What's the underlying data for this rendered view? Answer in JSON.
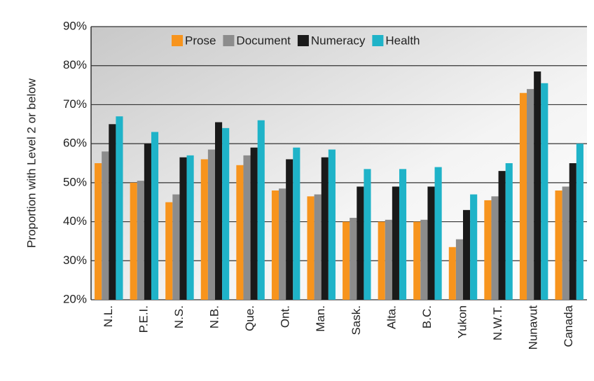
{
  "chart_data": {
    "type": "bar",
    "y_label": "Proportion with Level 2 or below",
    "categories": [
      "N.L.",
      "P.E.I.",
      "N.S.",
      "N.B.",
      "Que.",
      "Ont.",
      "Man.",
      "Sask.",
      "Alta.",
      "B.C.",
      "Yukon",
      "N.W.T.",
      "Nunavut",
      "Canada"
    ],
    "series": [
      {
        "name": "Prose",
        "color": "#f7941d",
        "values": [
          55,
          50,
          45,
          56,
          54.5,
          48,
          46.5,
          40,
          40,
          40,
          33.5,
          45.5,
          73,
          48
        ]
      },
      {
        "name": "Document",
        "color": "#8c8c8c",
        "values": [
          58,
          50.5,
          47,
          58.5,
          57,
          48.5,
          47,
          41,
          40.5,
          40.5,
          35.5,
          46.5,
          74,
          49
        ]
      },
      {
        "name": "Numeracy",
        "color": "#1a1a1a",
        "values": [
          65,
          60,
          56.5,
          65.5,
          59,
          56,
          56.5,
          49,
          49,
          49,
          43,
          53,
          78.5,
          55
        ]
      },
      {
        "name": "Health",
        "color": "#1fb3c8",
        "values": [
          67,
          63,
          57,
          64,
          66,
          59,
          58.5,
          53.5,
          53.5,
          54,
          47,
          55,
          75.5,
          60
        ]
      }
    ],
    "ylim": [
      20,
      90
    ],
    "yticks": [
      {
        "value": 20,
        "label": "20%"
      },
      {
        "value": 30,
        "label": "30%"
      },
      {
        "value": 40,
        "label": "40%"
      },
      {
        "value": 50,
        "label": "50%"
      },
      {
        "value": 60,
        "label": "60%"
      },
      {
        "value": 70,
        "label": "70%"
      },
      {
        "value": 80,
        "label": "80%"
      },
      {
        "value": 90,
        "label": "90%"
      }
    ],
    "grid": true,
    "legend": "top"
  }
}
